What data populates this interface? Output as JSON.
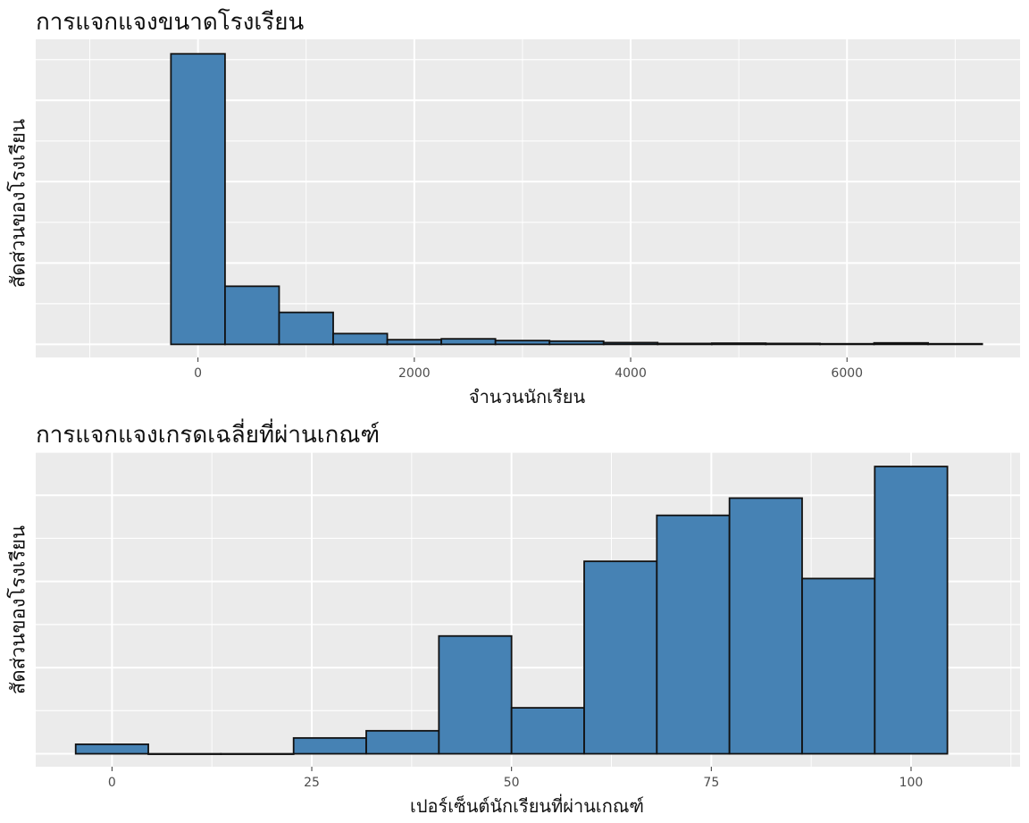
{
  "chart_data": [
    {
      "type": "bar",
      "title": "การแจกแจงขนาดโรงเรียน",
      "xlabel": "จำนวนนักเรียน",
      "ylabel": "สัดส่วนของโรงเรียน",
      "bin_width": 500,
      "bin_starts": [
        -250,
        250,
        750,
        1250,
        1750,
        2250,
        2750,
        3250,
        3750,
        4250,
        4750,
        5250,
        5750,
        6250,
        6750
      ],
      "values": [
        1.0,
        0.2,
        0.11,
        0.037,
        0.016,
        0.019,
        0.013,
        0.011,
        0.006,
        0.003,
        0.004,
        0.003,
        0.002,
        0.005,
        0.002
      ],
      "xlim": [
        -1500,
        7600
      ],
      "ylim": [
        -0.045,
        1.05
      ],
      "x_ticks": [
        0,
        2000,
        4000,
        6000
      ],
      "y_gridlines": [
        0,
        0.14,
        0.28,
        0.42,
        0.56,
        0.7,
        0.84,
        0.98
      ],
      "grid": true,
      "colors": {
        "fill": "#4682b4",
        "stroke": "#111111",
        "panel": "#ebebeb",
        "grid": "#ffffff"
      }
    },
    {
      "type": "bar",
      "title": "การแจกแจงเกรดเฉลี่ยที่ผ่านเกณฑ์",
      "xlabel": "เปอร์เซ็นต์นักเรียนที่ผ่านเกณฑ์",
      "ylabel": "สัดส่วนของโรงเรียน",
      "bin_width": 9.09,
      "bin_starts": [
        -4.545,
        4.545,
        13.636,
        22.727,
        31.818,
        40.909,
        50.0,
        59.091,
        68.182,
        77.273,
        86.364,
        95.455
      ],
      "values": [
        0.033,
        0.0,
        0.0,
        0.055,
        0.08,
        0.41,
        0.16,
        0.67,
        0.83,
        0.89,
        0.61,
        1.0
      ],
      "xlim": [
        -9.545,
        113.64
      ],
      "ylim": [
        -0.045,
        1.05
      ],
      "x_ticks": [
        0,
        25,
        50,
        75,
        100
      ],
      "y_gridlines": [
        0,
        0.15,
        0.3,
        0.45,
        0.6,
        0.75,
        0.9,
        1.05
      ],
      "grid": true,
      "colors": {
        "fill": "#4682b4",
        "stroke": "#111111",
        "panel": "#ebebeb",
        "grid": "#ffffff"
      }
    }
  ]
}
